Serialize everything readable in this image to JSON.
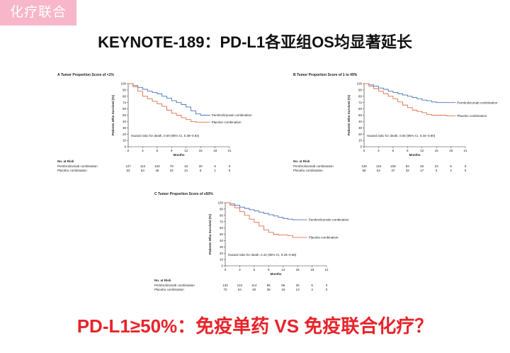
{
  "tag_label": "化疗联合",
  "slide_title": "KEYNOTE-189：PD-L1各亚组OS均显著延长",
  "bottom_question": "PD-L1≥50%：免疫单药 VS 免疫联合化疗？",
  "colors": {
    "tag_bg": "#f7b6c9",
    "pembro": "#4a72b8",
    "placebo": "#e0704a",
    "question": "#e8232a"
  },
  "chart_data": [
    {
      "type": "line",
      "panel_title": "A  Tumor Proportion Score of <1%",
      "ylabel": "Patients Who Survived (%)",
      "xlabel": "Months",
      "xlim": [
        0,
        21
      ],
      "ylim": [
        0,
        100
      ],
      "xticks": [
        0,
        3,
        6,
        9,
        12,
        15,
        18,
        21
      ],
      "yticks": [
        0,
        10,
        20,
        30,
        40,
        50,
        60,
        70,
        80,
        90,
        100
      ],
      "annotation": "Hazard ratio for death, 0.59 (95% CI, 0.38–0.92)",
      "series": [
        {
          "name": "Pembrolizumab combination",
          "points": [
            [
              0,
              100
            ],
            [
              1,
              97
            ],
            [
              2,
              94
            ],
            [
              3,
              91
            ],
            [
              4,
              88
            ],
            [
              5,
              86
            ],
            [
              6,
              84
            ],
            [
              7,
              80
            ],
            [
              8,
              77
            ],
            [
              9,
              73
            ],
            [
              10,
              70
            ],
            [
              11,
              67
            ],
            [
              12,
              63
            ],
            [
              13,
              57
            ],
            [
              14,
              52
            ],
            [
              15,
              50
            ],
            [
              17,
              50
            ]
          ]
        },
        {
          "name": "Placebo combination",
          "points": [
            [
              0,
              100
            ],
            [
              1,
              95
            ],
            [
              2,
              88
            ],
            [
              3,
              80
            ],
            [
              4,
              76
            ],
            [
              5,
              72
            ],
            [
              6,
              68
            ],
            [
              7,
              64
            ],
            [
              8,
              58
            ],
            [
              9,
              53
            ],
            [
              10,
              50
            ],
            [
              11,
              46
            ],
            [
              12,
              43
            ],
            [
              13,
              40
            ],
            [
              14,
              39
            ],
            [
              15,
              39
            ],
            [
              17,
              39
            ]
          ]
        }
      ],
      "risk_header": "No. at Risk",
      "risk_rows": [
        {
          "label": "Pembrolizumab combination",
          "values": [
            "127",
            "113",
            "104",
            "79",
            "42",
            "20",
            "6",
            "0"
          ]
        },
        {
          "label": "Placebo combination",
          "values": [
            "63",
            "54",
            "45",
            "32",
            "21",
            "6",
            "1",
            "0"
          ]
        }
      ]
    },
    {
      "type": "line",
      "panel_title": "B  Tumor Proportion Score of 1 to 49%",
      "ylabel": "Patients Who Survived (%)",
      "xlabel": "Months",
      "xlim": [
        0,
        21
      ],
      "ylim": [
        0,
        100
      ],
      "xticks": [
        0,
        3,
        6,
        9,
        12,
        15,
        18,
        21
      ],
      "yticks": [
        0,
        10,
        20,
        30,
        40,
        50,
        60,
        70,
        80,
        90,
        100
      ],
      "annotation": "Hazard ratio for death, 0.55 (95% CI, 0.34–0.90)",
      "series": [
        {
          "name": "Pembrolizumab combination",
          "points": [
            [
              0,
              100
            ],
            [
              1,
              98
            ],
            [
              2,
              96
            ],
            [
              3,
              93
            ],
            [
              4,
              91
            ],
            [
              5,
              88
            ],
            [
              6,
              86
            ],
            [
              7,
              84
            ],
            [
              8,
              82
            ],
            [
              9,
              80
            ],
            [
              10,
              78
            ],
            [
              11,
              76
            ],
            [
              12,
              74
            ],
            [
              13,
              73
            ],
            [
              14,
              71
            ],
            [
              15,
              70
            ],
            [
              17,
              70
            ],
            [
              19,
              70
            ]
          ]
        },
        {
          "name": "Placebo combination",
          "points": [
            [
              0,
              100
            ],
            [
              1,
              96
            ],
            [
              2,
              92
            ],
            [
              3,
              88
            ],
            [
              4,
              84
            ],
            [
              5,
              80
            ],
            [
              6,
              76
            ],
            [
              7,
              71
            ],
            [
              8,
              66
            ],
            [
              9,
              62
            ],
            [
              10,
              58
            ],
            [
              11,
              56
            ],
            [
              12,
              54
            ],
            [
              13,
              51
            ],
            [
              14,
              50
            ],
            [
              15,
              50
            ],
            [
              17,
              49
            ],
            [
              19,
              49
            ]
          ]
        }
      ],
      "risk_header": "No. at Risk",
      "risk_rows": [
        {
          "label": "Pembrolizumab combination",
          "values": [
            "128",
            "119",
            "108",
            "84",
            "52",
            "23",
            "5",
            "0"
          ]
        },
        {
          "label": "Placebo combination",
          "values": [
            "58",
            "54",
            "47",
            "32",
            "17",
            "5",
            "2",
            "0"
          ]
        }
      ]
    },
    {
      "type": "line",
      "panel_title": "C  Tumor Proportion Score of ≥50%",
      "ylabel": "Patients Who Survived (%)",
      "xlabel": "Months",
      "xlim": [
        0,
        21
      ],
      "ylim": [
        0,
        100
      ],
      "xticks": [
        0,
        3,
        6,
        9,
        12,
        15,
        18,
        21
      ],
      "yticks": [
        0,
        10,
        20,
        30,
        40,
        50,
        60,
        70,
        80,
        90,
        100
      ],
      "annotation": "Hazard ratio for death, 0.42 (95% CI, 0.26–0.68)",
      "series": [
        {
          "name": "Pembrolizumab combination",
          "points": [
            [
              0,
              100
            ],
            [
              1,
              98
            ],
            [
              2,
              96
            ],
            [
              3,
              93
            ],
            [
              4,
              91
            ],
            [
              5,
              89
            ],
            [
              6,
              87
            ],
            [
              7,
              85
            ],
            [
              8,
              83
            ],
            [
              9,
              81
            ],
            [
              10,
              79
            ],
            [
              11,
              77
            ],
            [
              12,
              75
            ],
            [
              13,
              74
            ],
            [
              14,
              73
            ],
            [
              15,
              73
            ],
            [
              17,
              73
            ]
          ]
        },
        {
          "name": "Placebo combination",
          "points": [
            [
              0,
              100
            ],
            [
              1,
              96
            ],
            [
              2,
              92
            ],
            [
              3,
              86
            ],
            [
              4,
              80
            ],
            [
              5,
              74
            ],
            [
              6,
              69
            ],
            [
              7,
              63
            ],
            [
              8,
              57
            ],
            [
              9,
              53
            ],
            [
              10,
              50
            ],
            [
              11,
              49
            ],
            [
              12,
              49
            ],
            [
              13,
              48
            ],
            [
              14,
              45
            ],
            [
              15,
              45
            ],
            [
              17,
              45
            ]
          ]
        }
      ],
      "risk_header": "No. at Risk",
      "risk_rows": [
        {
          "label": "Pembrolizumab combination",
          "values": [
            "132",
            "122",
            "114",
            "96",
            "56",
            "25",
            "6",
            "0"
          ]
        },
        {
          "label": "Placebo combination",
          "values": [
            "70",
            "64",
            "50",
            "35",
            "19",
            "13",
            "4",
            "0"
          ]
        }
      ]
    }
  ]
}
